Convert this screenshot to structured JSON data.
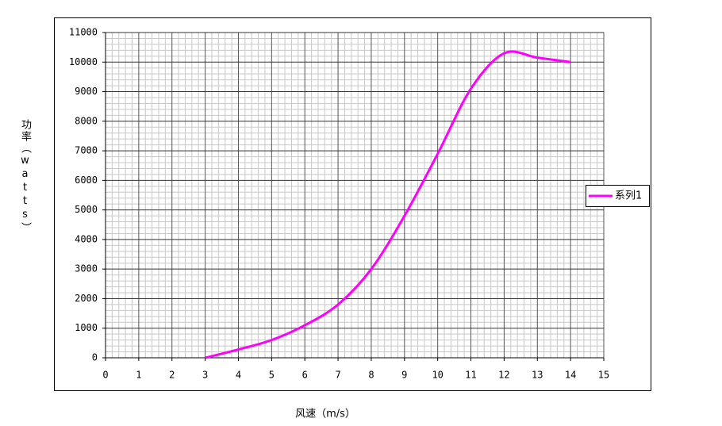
{
  "chart_data": {
    "type": "line",
    "x_label": "风速（m/s）",
    "y_label": "功率（watts）",
    "x": [
      3,
      4,
      5,
      6,
      7,
      8,
      9,
      10,
      11,
      12,
      13,
      14
    ],
    "series": [
      {
        "name": "系列1",
        "color": "#ff00ff",
        "values": [
          0,
          280,
          600,
          1100,
          1800,
          3000,
          4800,
          6900,
          9100,
          10300,
          10150,
          10000
        ]
      }
    ],
    "xlim": [
      0,
      15
    ],
    "xticks": [
      0,
      1,
      2,
      3,
      4,
      5,
      6,
      7,
      8,
      9,
      10,
      11,
      12,
      13,
      14,
      15
    ],
    "ylim": [
      0,
      11000
    ],
    "yticks": [
      0,
      1000,
      2000,
      3000,
      4000,
      5000,
      6000,
      7000,
      8000,
      9000,
      10000,
      11000
    ],
    "grid": true,
    "legend": "right"
  }
}
